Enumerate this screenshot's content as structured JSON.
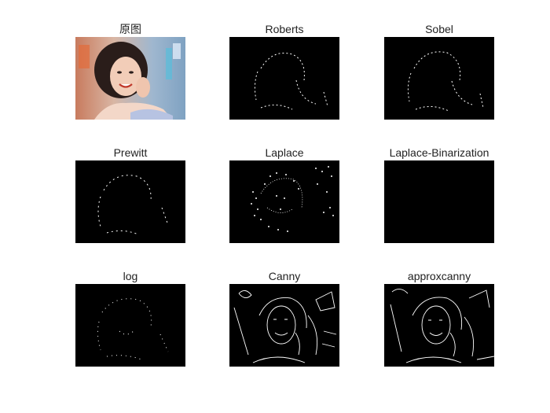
{
  "figure": {
    "panels": [
      {
        "title": "原图",
        "image": "original-photo"
      },
      {
        "title": "Roberts",
        "image": "roberts-edges"
      },
      {
        "title": "Sobel",
        "image": "sobel-edges"
      },
      {
        "title": "Prewitt",
        "image": "prewitt-edges"
      },
      {
        "title": "Laplace",
        "image": "laplace-edges"
      },
      {
        "title": "Laplace-Binarization",
        "image": "laplace-binarization-black"
      },
      {
        "title": "log",
        "image": "log-edges"
      },
      {
        "title": "Canny",
        "image": "canny-edges"
      },
      {
        "title": "approxcanny",
        "image": "approxcanny-edges"
      }
    ]
  }
}
